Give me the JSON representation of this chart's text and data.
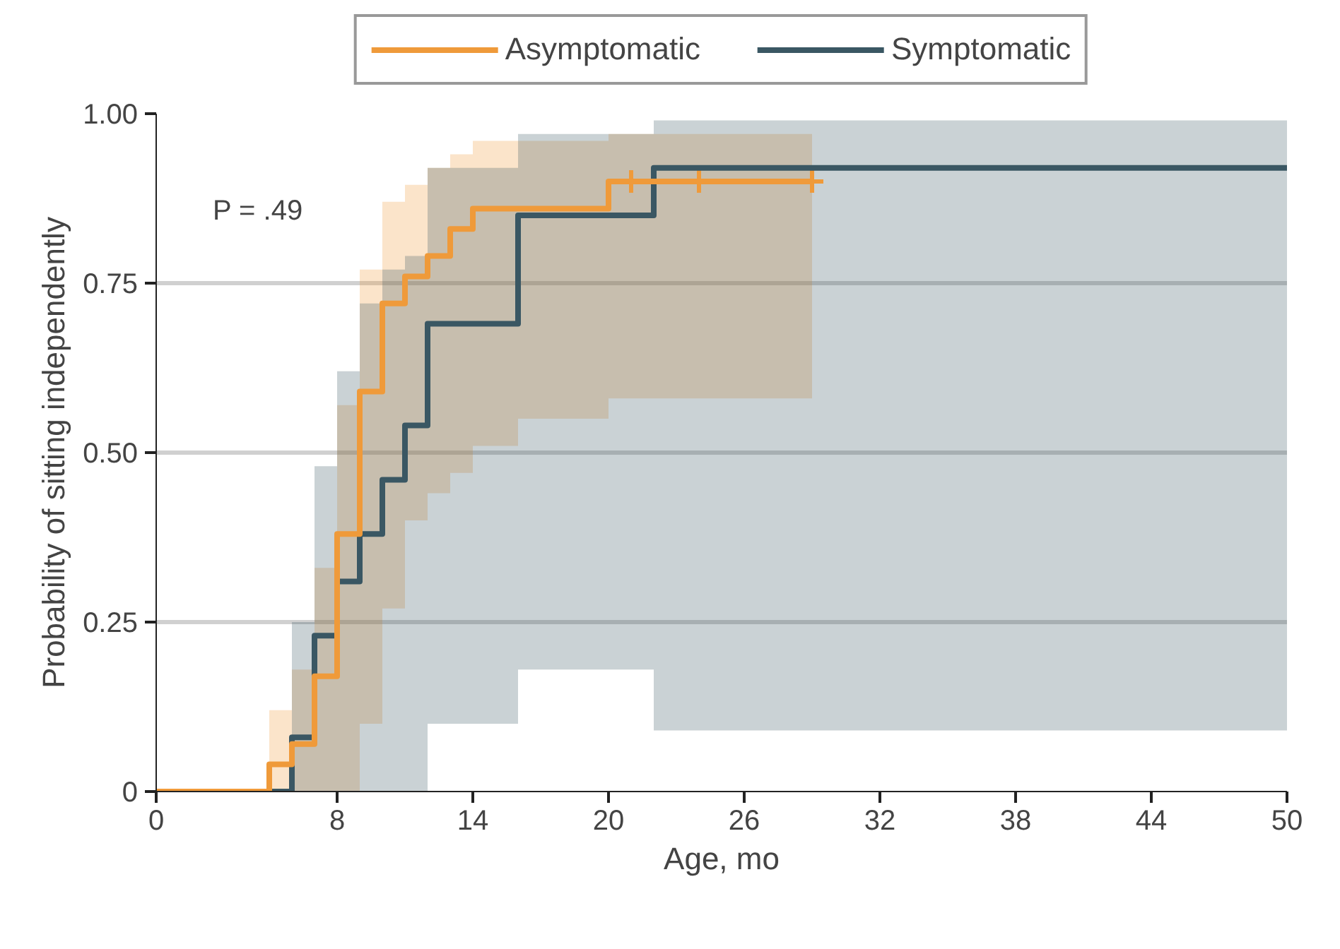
{
  "chart_data": {
    "type": "step",
    "xlabel": "Age, mo",
    "ylabel": "Probability of sitting independently",
    "xlim": [
      0,
      50
    ],
    "ylim": [
      0,
      1
    ],
    "xticks": [
      0,
      8,
      14,
      20,
      26,
      32,
      38,
      44,
      50
    ],
    "yticks": [
      0,
      {
        "value": 0.25,
        "label": "0.25"
      },
      {
        "value": 0.5,
        "label": "0.50"
      },
      {
        "value": 0.75,
        "label": "0.75"
      },
      {
        "value": 1,
        "label": "1.00"
      }
    ],
    "grid": "y",
    "legend": "top",
    "annotations": [
      "P = .49"
    ],
    "series": [
      {
        "name": "Asymptomatic",
        "color": "#ef9a3a",
        "x": [
          0,
          5,
          6,
          7,
          8,
          9,
          10,
          11,
          12,
          13,
          14,
          16,
          20,
          29
        ],
        "values": [
          0,
          0.04,
          0.07,
          0.17,
          0.38,
          0.59,
          0.72,
          0.76,
          0.79,
          0.83,
          0.86,
          0.86,
          0.9,
          0.9
        ],
        "lower": [
          0,
          0,
          0,
          0,
          0,
          0.1,
          0.27,
          0.4,
          0.44,
          0.47,
          0.51,
          0.55,
          0.58,
          0.58
        ],
        "upper": [
          0,
          0.12,
          0.18,
          0.33,
          0.57,
          0.77,
          0.87,
          0.895,
          0.92,
          0.94,
          0.96,
          0.96,
          0.97,
          0.97
        ]
      },
      {
        "name": "Symptomatic",
        "color": "#3a5763",
        "x": [
          0,
          6,
          7,
          8,
          9,
          10,
          11,
          12,
          16,
          22,
          50
        ],
        "values": [
          0,
          0.08,
          0.23,
          0.31,
          0.38,
          0.46,
          0.54,
          0.69,
          0.85,
          0.92,
          0.92
        ],
        "lower": [
          0,
          0,
          0,
          0,
          0,
          0,
          0,
          0.1,
          0.18,
          0.09,
          0.09
        ],
        "upper": [
          0,
          0.25,
          0.48,
          0.62,
          0.72,
          0.77,
          0.79,
          0.92,
          0.97,
          0.99,
          0.99
        ]
      },
      {
        "type": "scatter",
        "marker": "cross",
        "color": "#ef9a3a",
        "x": [
          21,
          24,
          29
        ],
        "values": [
          0.9,
          0.9,
          0.9
        ]
      }
    ]
  }
}
